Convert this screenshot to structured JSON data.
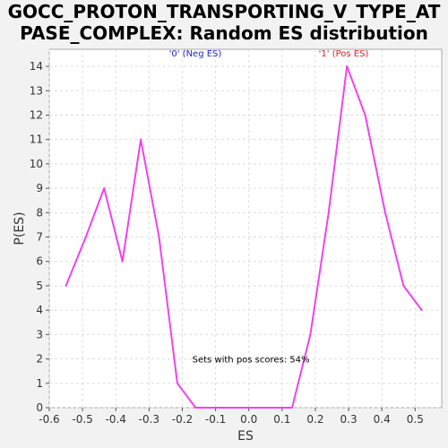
{
  "chart_data": {
    "type": "line",
    "title_lines": [
      "GOCC_PROTON_TRANSPORTING_V_TYPE_AT",
      "PASE_COMPLEX: Random ES distribution"
    ],
    "xlabel": "ES",
    "ylabel": "P(ES)",
    "xlim": [
      -0.6,
      0.58
    ],
    "ylim": [
      0,
      14.7
    ],
    "xticks": [
      -0.6,
      -0.5,
      -0.4,
      -0.3,
      -0.2,
      -0.1,
      0.0,
      0.1,
      0.2,
      0.3,
      0.4,
      0.5
    ],
    "xtick_labels": [
      "-0.6",
      "-0.5",
      "-0.4",
      "-0.3",
      "-0.2",
      "-0.1",
      "0.0",
      "0.1",
      "0.2",
      "0.3",
      "0.4",
      "0.5"
    ],
    "yticks": [
      0,
      1,
      2,
      3,
      4,
      5,
      6,
      7,
      8,
      9,
      10,
      11,
      12,
      13,
      14
    ],
    "ytick_labels": [
      "0",
      "1",
      "2",
      "3",
      "4",
      "5",
      "6",
      "7",
      "8",
      "9",
      "10",
      "11",
      "12",
      "13",
      "14"
    ],
    "grid": true,
    "series": [
      {
        "color": "#ee44ee",
        "x": [
          -0.55,
          -0.49,
          -0.435,
          -0.38,
          -0.325,
          -0.27,
          -0.215,
          -0.16,
          -0.105,
          -0.05,
          0.005,
          0.06,
          0.13,
          0.185,
          0.24,
          0.295,
          0.35,
          0.41,
          0.465,
          0.52
        ],
        "y": [
          5,
          7,
          9,
          6,
          11,
          7,
          1,
          0,
          0,
          0,
          0,
          0,
          0,
          3,
          8,
          14,
          12,
          8,
          5,
          4
        ]
      }
    ],
    "annotations": [
      {
        "id": "neg",
        "text": "'0' (Neg ES)",
        "color": "#2222cc",
        "x": -0.24,
        "y": 14.4
      },
      {
        "id": "pos",
        "text": "'1' (Pos ES)",
        "color": "#dd2222",
        "x": 0.21,
        "y": 14.4
      },
      {
        "id": "pos-scores",
        "text": "Sets with pos scores: 54%",
        "color": "#000000",
        "x": -0.17,
        "y": 1.85
      }
    ]
  }
}
